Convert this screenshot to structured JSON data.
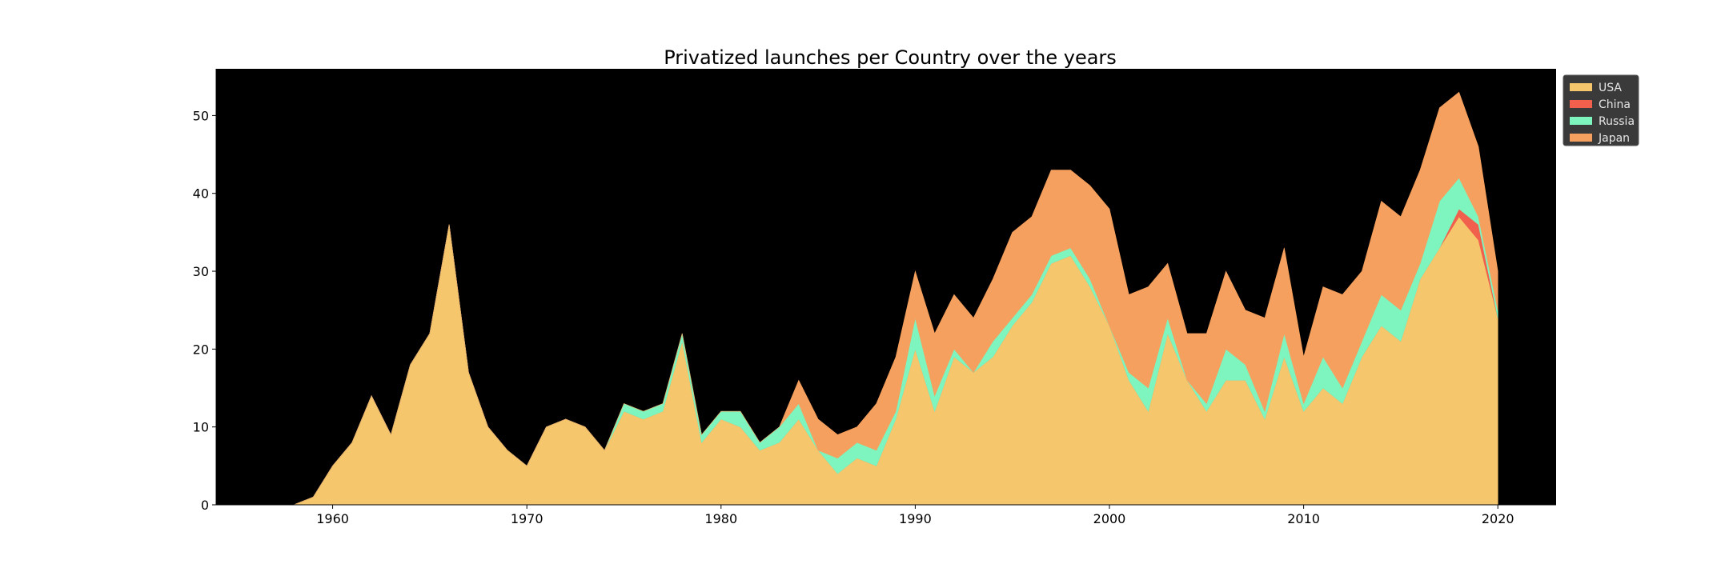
{
  "chart_data": {
    "type": "area",
    "stacked": true,
    "title": "Privatized launches per Country over the years",
    "xlabel": "",
    "ylabel": "",
    "xlim": [
      1954,
      2023
    ],
    "ylim": [
      0,
      56
    ],
    "xticks": [
      1960,
      1970,
      1980,
      1990,
      2000,
      2010,
      2020
    ],
    "yticks": [
      0,
      10,
      20,
      30,
      40,
      50
    ],
    "grid": false,
    "legend_position": "upper-right-outside",
    "background_color": "#000000",
    "x": [
      1958,
      1959,
      1960,
      1961,
      1962,
      1963,
      1964,
      1965,
      1966,
      1967,
      1968,
      1969,
      1970,
      1971,
      1972,
      1973,
      1974,
      1975,
      1976,
      1977,
      1978,
      1979,
      1980,
      1981,
      1982,
      1983,
      1984,
      1985,
      1986,
      1987,
      1988,
      1989,
      1990,
      1991,
      1992,
      1993,
      1994,
      1995,
      1996,
      1997,
      1998,
      1999,
      2000,
      2001,
      2002,
      2003,
      2004,
      2005,
      2006,
      2007,
      2008,
      2009,
      2010,
      2011,
      2012,
      2013,
      2014,
      2015,
      2016,
      2017,
      2018,
      2019,
      2020
    ],
    "series": [
      {
        "name": "USA",
        "color": "#f5c66b",
        "values": [
          0,
          1,
          5,
          8,
          14,
          9,
          18,
          22,
          36,
          17,
          10,
          7,
          5,
          10,
          11,
          10,
          7,
          12,
          11,
          12,
          21,
          8,
          11,
          10,
          7,
          8,
          11,
          7,
          4,
          6,
          5,
          11,
          20,
          12,
          19,
          17,
          19,
          23,
          26,
          31,
          32,
          28,
          23,
          16,
          12,
          22,
          16,
          12,
          16,
          16,
          11,
          19,
          12,
          15,
          13,
          19,
          23,
          21,
          29,
          33,
          37,
          34,
          24
        ]
      },
      {
        "name": "China",
        "color": "#f0604d",
        "values": [
          0,
          0,
          0,
          0,
          0,
          0,
          0,
          0,
          0,
          0,
          0,
          0,
          0,
          0,
          0,
          0,
          0,
          0,
          0,
          0,
          0,
          0,
          0,
          0,
          0,
          0,
          0,
          0,
          0,
          0,
          0,
          0,
          0,
          0,
          0,
          0,
          0,
          0,
          0,
          0,
          0,
          0,
          0,
          0,
          0,
          0,
          0,
          0,
          0,
          0,
          0,
          0,
          0,
          0,
          0,
          0,
          0,
          0,
          0,
          0,
          1,
          2,
          0
        ]
      },
      {
        "name": "Russia",
        "color": "#7ef5be",
        "values": [
          0,
          0,
          0,
          0,
          0,
          0,
          0,
          0,
          0,
          0,
          0,
          0,
          0,
          0,
          0,
          0,
          0,
          1,
          1,
          1,
          1,
          1,
          1,
          2,
          1,
          2,
          2,
          0,
          2,
          2,
          2,
          1,
          4,
          2,
          1,
          0,
          2,
          1,
          1,
          1,
          1,
          1,
          0,
          1,
          3,
          2,
          0,
          1,
          4,
          2,
          1,
          3,
          1,
          4,
          2,
          2,
          4,
          4,
          2,
          6,
          4,
          1,
          1
        ]
      },
      {
        "name": "Japan",
        "color": "#f5a05e",
        "values": [
          0,
          0,
          0,
          0,
          0,
          0,
          0,
          0,
          0,
          0,
          0,
          0,
          0,
          0,
          0,
          0,
          0,
          0,
          0,
          0,
          0,
          0,
          0,
          0,
          0,
          0,
          3,
          4,
          3,
          2,
          6,
          7,
          6,
          8,
          7,
          7,
          8,
          11,
          10,
          11,
          10,
          12,
          15,
          10,
          13,
          7,
          6,
          9,
          10,
          7,
          12,
          11,
          6,
          9,
          12,
          9,
          12,
          12,
          12,
          12,
          11,
          9,
          5
        ]
      }
    ]
  }
}
